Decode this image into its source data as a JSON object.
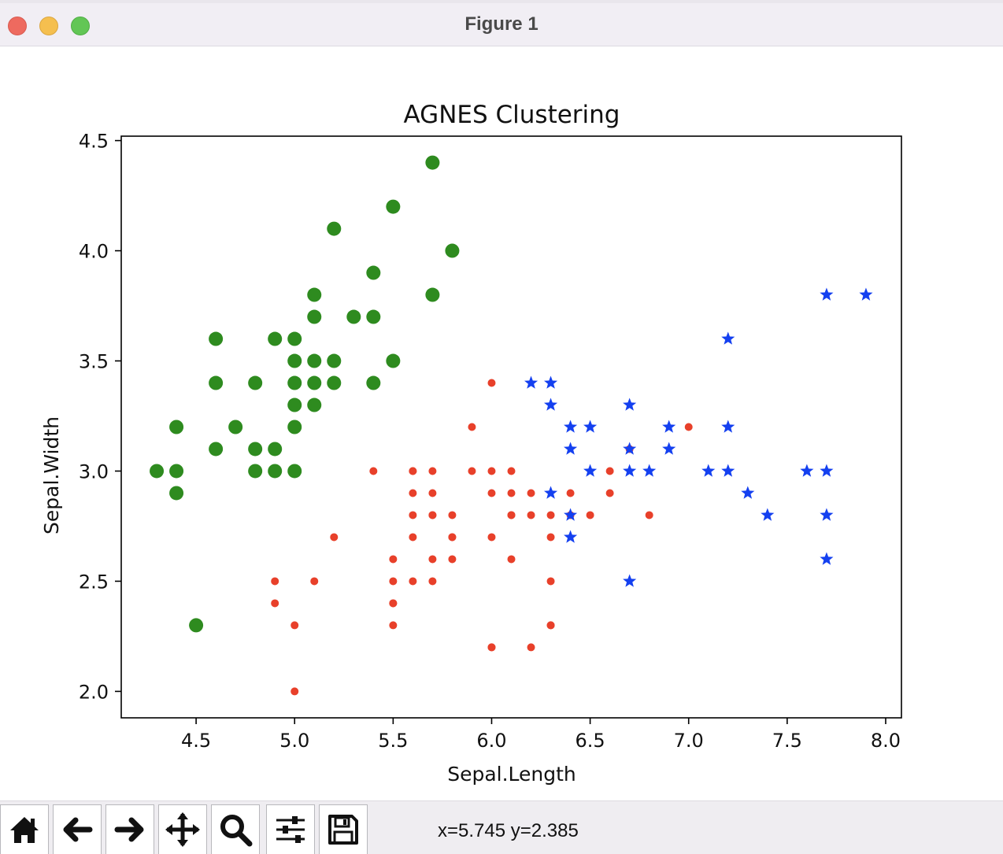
{
  "window": {
    "title": "Figure 1"
  },
  "toolbar": {
    "buttons": [
      {
        "name": "home-button",
        "icon": "home-icon"
      },
      {
        "name": "back-button",
        "icon": "arrow-left-icon"
      },
      {
        "name": "forward-button",
        "icon": "arrow-right-icon"
      },
      {
        "name": "pan-button",
        "icon": "move-icon"
      },
      {
        "name": "zoom-button",
        "icon": "magnifier-icon"
      },
      {
        "name": "subplots-button",
        "icon": "sliders-icon"
      },
      {
        "name": "save-button",
        "icon": "floppy-disk-icon"
      }
    ],
    "coordinates": "x=5.745 y=2.385"
  },
  "chart_data": {
    "type": "scatter",
    "title": "AGNES Clustering",
    "xlabel": "Sepal.Length",
    "ylabel": "Sepal.Width",
    "xlim": [
      4.12,
      8.08
    ],
    "ylim": [
      1.88,
      4.52
    ],
    "xticks": [
      "4.5",
      "5.0",
      "5.5",
      "6.0",
      "6.5",
      "7.0",
      "7.5",
      "8.0"
    ],
    "yticks": [
      "2.0",
      "2.5",
      "3.0",
      "3.5",
      "4.0",
      "4.5"
    ],
    "grid": false,
    "legend": "none",
    "series": [
      {
        "marker": "circle-large",
        "color": "#2e8b1f",
        "points": [
          [
            5.1,
            3.5
          ],
          [
            4.9,
            3.0
          ],
          [
            4.7,
            3.2
          ],
          [
            4.6,
            3.1
          ],
          [
            5.0,
            3.6
          ],
          [
            5.4,
            3.9
          ],
          [
            4.6,
            3.4
          ],
          [
            5.0,
            3.4
          ],
          [
            4.4,
            2.9
          ],
          [
            5.4,
            3.7
          ],
          [
            4.8,
            3.4
          ],
          [
            4.8,
            3.0
          ],
          [
            4.3,
            3.0
          ],
          [
            5.8,
            4.0
          ],
          [
            5.7,
            4.4
          ],
          [
            5.7,
            3.8
          ],
          [
            5.1,
            3.8
          ],
          [
            5.2,
            4.1
          ],
          [
            5.5,
            4.2
          ],
          [
            5.0,
            3.2
          ],
          [
            5.5,
            3.5
          ],
          [
            4.4,
            3.0
          ],
          [
            5.1,
            3.4
          ],
          [
            5.0,
            3.5
          ],
          [
            4.5,
            2.3
          ],
          [
            4.4,
            3.2
          ],
          [
            4.8,
            3.1
          ],
          [
            5.3,
            3.7
          ],
          [
            5.0,
            3.3
          ],
          [
            4.9,
            3.1
          ],
          [
            5.4,
            3.4
          ],
          [
            5.2,
            3.5
          ],
          [
            5.2,
            3.4
          ],
          [
            4.6,
            3.6
          ],
          [
            4.9,
            3.6
          ],
          [
            5.1,
            3.3
          ],
          [
            5.1,
            3.7
          ],
          [
            5.0,
            3.0
          ]
        ]
      },
      {
        "marker": "circle-small",
        "color": "#e8402a",
        "points": [
          [
            7.0,
            3.2
          ],
          [
            6.4,
            2.9
          ],
          [
            5.5,
            2.3
          ],
          [
            6.5,
            2.8
          ],
          [
            5.7,
            2.8
          ],
          [
            6.3,
            2.3
          ],
          [
            4.9,
            2.4
          ],
          [
            6.6,
            2.9
          ],
          [
            5.2,
            2.7
          ],
          [
            5.0,
            2.0
          ],
          [
            5.9,
            3.0
          ],
          [
            6.0,
            2.2
          ],
          [
            6.1,
            2.9
          ],
          [
            5.6,
            2.9
          ],
          [
            6.7,
            3.1
          ],
          [
            5.6,
            3.0
          ],
          [
            5.8,
            2.7
          ],
          [
            6.2,
            2.2
          ],
          [
            5.6,
            2.5
          ],
          [
            5.9,
            3.2
          ],
          [
            6.1,
            2.8
          ],
          [
            6.3,
            2.5
          ],
          [
            6.6,
            3.0
          ],
          [
            6.8,
            2.8
          ],
          [
            6.0,
            2.9
          ],
          [
            5.7,
            2.6
          ],
          [
            5.5,
            2.4
          ],
          [
            5.5,
            2.4
          ],
          [
            5.8,
            2.7
          ],
          [
            6.0,
            2.7
          ],
          [
            5.4,
            3.0
          ],
          [
            6.0,
            3.4
          ],
          [
            6.3,
            2.3
          ],
          [
            5.6,
            3.0
          ],
          [
            5.5,
            2.5
          ],
          [
            5.5,
            2.6
          ],
          [
            6.1,
            3.0
          ],
          [
            5.8,
            2.6
          ],
          [
            5.0,
            2.3
          ],
          [
            5.6,
            2.7
          ],
          [
            5.7,
            3.0
          ],
          [
            5.7,
            2.9
          ],
          [
            6.2,
            2.9
          ],
          [
            5.1,
            2.5
          ],
          [
            5.7,
            2.8
          ],
          [
            4.9,
            2.5
          ],
          [
            6.0,
            2.2
          ],
          [
            6.3,
            2.7
          ],
          [
            6.1,
            2.6
          ],
          [
            6.3,
            2.8
          ],
          [
            5.8,
            2.8
          ],
          [
            5.7,
            2.5
          ],
          [
            6.1,
            2.8
          ],
          [
            6.2,
            2.8
          ],
          [
            6.0,
            3.0
          ],
          [
            6.4,
            2.8
          ],
          [
            5.6,
            2.8
          ]
        ]
      },
      {
        "marker": "star",
        "color": "#1440f0",
        "points": [
          [
            6.3,
            3.3
          ],
          [
            7.1,
            3.0
          ],
          [
            6.5,
            3.0
          ],
          [
            7.6,
            3.0
          ],
          [
            7.3,
            2.9
          ],
          [
            7.2,
            3.6
          ],
          [
            6.5,
            3.2
          ],
          [
            6.4,
            2.7
          ],
          [
            6.8,
            3.0
          ],
          [
            6.4,
            3.2
          ],
          [
            7.7,
            3.8
          ],
          [
            7.7,
            2.6
          ],
          [
            6.9,
            3.2
          ],
          [
            7.7,
            2.8
          ],
          [
            6.7,
            3.3
          ],
          [
            7.2,
            3.2
          ],
          [
            7.2,
            3.0
          ],
          [
            7.4,
            2.8
          ],
          [
            7.9,
            3.8
          ],
          [
            6.4,
            2.8
          ],
          [
            7.7,
            3.0
          ],
          [
            6.3,
            3.4
          ],
          [
            6.4,
            3.1
          ],
          [
            6.9,
            3.1
          ],
          [
            6.7,
            3.1
          ],
          [
            6.7,
            3.0
          ],
          [
            6.2,
            3.4
          ],
          [
            6.7,
            2.5
          ],
          [
            6.3,
            2.9
          ]
        ]
      }
    ]
  }
}
